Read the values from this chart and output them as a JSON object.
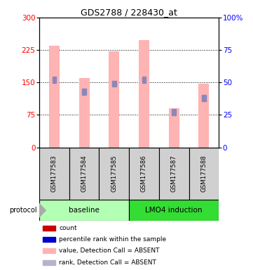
{
  "title": "GDS2788 / 228430_at",
  "samples": [
    "GSM177583",
    "GSM177584",
    "GSM177585",
    "GSM177586",
    "GSM177587",
    "GSM177588"
  ],
  "pink_values": [
    235,
    160,
    222,
    248,
    90,
    148
  ],
  "blue_percentiles": [
    52,
    43,
    49,
    52,
    27,
    38
  ],
  "ylim_left": [
    0,
    300
  ],
  "ylim_right": [
    0,
    100
  ],
  "yticks_left": [
    0,
    75,
    150,
    225,
    300
  ],
  "yticks_right": [
    0,
    25,
    50,
    75,
    100
  ],
  "ytick_labels_right": [
    "0",
    "25",
    "50",
    "75",
    "100%"
  ],
  "groups": [
    {
      "label": "baseline",
      "samples": [
        0,
        1,
        2
      ],
      "color": "#b3ffb3"
    },
    {
      "label": "LMO4 induction",
      "samples": [
        3,
        4,
        5
      ],
      "color": "#33dd33"
    }
  ],
  "bar_width": 0.35,
  "pink_color": "#ffb3b3",
  "blue_color": "#8888bb",
  "group_box_color": "#d0d0d0",
  "legend_items": [
    {
      "color": "#cc0000",
      "label": "count"
    },
    {
      "color": "#0000cc",
      "label": "percentile rank within the sample"
    },
    {
      "color": "#ffb3b3",
      "label": "value, Detection Call = ABSENT"
    },
    {
      "color": "#b3b3cc",
      "label": "rank, Detection Call = ABSENT"
    }
  ],
  "protocol_label": "protocol"
}
